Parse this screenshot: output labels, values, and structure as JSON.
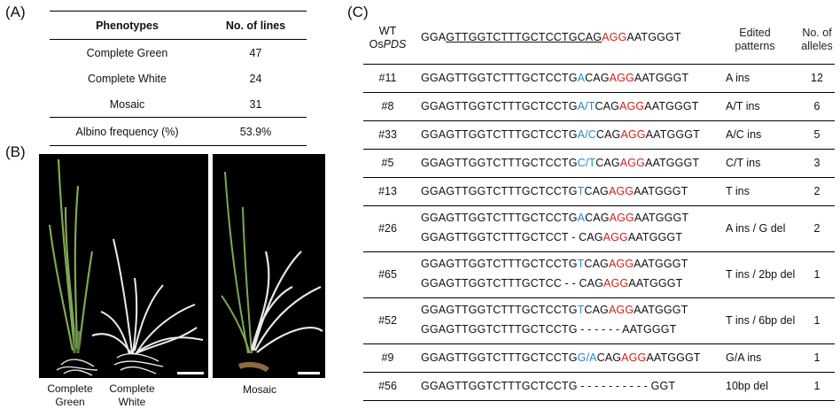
{
  "panel_labels": {
    "a": "(A)",
    "b": "(B)",
    "c": "(C)"
  },
  "table_a": {
    "headers": [
      "Phenotypes",
      "No. of lines"
    ],
    "rows": [
      {
        "phenotype": "Complete Green",
        "lines": "47"
      },
      {
        "phenotype": "Complete White",
        "lines": "24"
      },
      {
        "phenotype": "Mosaic",
        "lines": "31"
      }
    ],
    "summary": {
      "label": "Albino frequency (%)",
      "value": "53.9%"
    }
  },
  "panel_b": {
    "captions": {
      "green_line1": "Complete",
      "green_line2": "Green",
      "white_line1": "Complete",
      "white_line2": "White",
      "mosaic": "Mosaic"
    },
    "colors": {
      "background": "#000000",
      "green_seedling": "#7fa856",
      "albino": "#e8e8e8"
    }
  },
  "table_c": {
    "header": {
      "wt_line1": "WT",
      "wt_line2_prefix": "Os",
      "wt_line2_gene": "PDS",
      "wt_seq_prefix": "GGA",
      "wt_seq_target": "GTTGGTCTTTGCTCCTGCAG",
      "wt_seq_pam": "AGG",
      "wt_seq_suffix": "AATGGGT",
      "patterns_line1": "Edited",
      "patterns_line2": "patterns",
      "alleles_line1": "No. of",
      "alleles_line2": "alleles"
    },
    "rows": [
      {
        "id": "#11",
        "seqs": [
          [
            "GGAGTTGGTCTTTGCTCCTG",
            "A",
            "CAG",
            "AGG",
            "AATGGGT"
          ]
        ],
        "pattern": "A ins",
        "alleles": "12"
      },
      {
        "id": "#8",
        "seqs": [
          [
            "GGAGTTGGTCTTTGCTCCTG",
            "A/T",
            "CAG",
            "AGG",
            "AATGGGT"
          ]
        ],
        "pattern": "A/T ins",
        "alleles": "6"
      },
      {
        "id": "#33",
        "seqs": [
          [
            "GGAGTTGGTCTTTGCTCCTG",
            "A/C",
            "CAG",
            "AGG",
            "AATGGGT"
          ]
        ],
        "pattern": "A/C ins",
        "alleles": "5"
      },
      {
        "id": "#5",
        "seqs": [
          [
            "GGAGTTGGTCTTTGCTCCTG",
            "C/T",
            "CAG",
            "AGG",
            "AATGGGT"
          ]
        ],
        "pattern": "C/T ins",
        "alleles": "3"
      },
      {
        "id": "#13",
        "seqs": [
          [
            "GGAGTTGGTCTTTGCTCCTG",
            "T",
            "CAG",
            "AGG",
            "AATGGGT"
          ]
        ],
        "pattern": "T ins",
        "alleles": "2"
      },
      {
        "id": "#26",
        "seqs": [
          [
            "GGAGTTGGTCTTTGCTCCTG",
            "A",
            "CAG",
            "AGG",
            "AATGGGT"
          ],
          [
            "GGAGTTGGTCTTTGCTCCT - ",
            "",
            "CAG",
            "AGG",
            "AATGGGT"
          ]
        ],
        "pattern": "A ins / G del",
        "alleles": "2"
      },
      {
        "id": "#65",
        "seqs": [
          [
            "GGAGTTGGTCTTTGCTCCTG",
            "T",
            "CAG",
            "AGG",
            "AATGGGT"
          ],
          [
            "GGAGTTGGTCTTTGCTCC - - ",
            "",
            "CAG",
            "AGG",
            "AATGGGT"
          ]
        ],
        "pattern": "T ins / 2bp del",
        "alleles": "1"
      },
      {
        "id": "#52",
        "seqs": [
          [
            "GGAGTTGGTCTTTGCTCCTG",
            "T",
            "CAG",
            "AGG",
            "AATGGGT"
          ],
          [
            "GGAGTTGGTCTTTGCTCCTG - - - - - - AATGGGT",
            "",
            "",
            "",
            ""
          ]
        ],
        "pattern": "T ins / 6bp del",
        "alleles": "1"
      },
      {
        "id": "#9",
        "seqs": [
          [
            "GGAGTTGGTCTTTGCTCCTG",
            "G/A",
            "CAG",
            "AGG",
            "AATGGGT"
          ]
        ],
        "pattern": "G/A ins",
        "alleles": "1"
      },
      {
        "id": "#56",
        "seqs": [
          [
            "GGAGTTGGTCTTTGCTCCTG - - - - - - - - - - GGT",
            "",
            "",
            "",
            ""
          ]
        ],
        "pattern": "10bp del",
        "alleles": "1"
      }
    ]
  }
}
